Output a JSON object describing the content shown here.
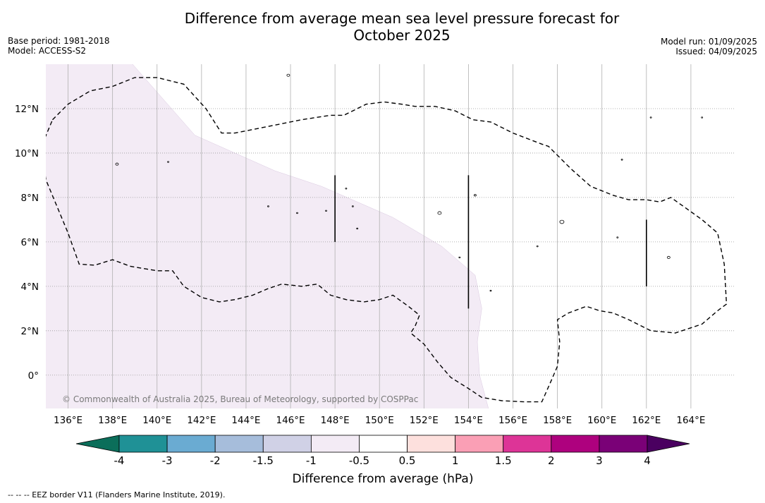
{
  "title": {
    "line1": "Difference from average mean sea level pressure forecast for",
    "line2": "October 2025"
  },
  "meta_left": {
    "base_period": "Base period: 1981-2018",
    "model": "Model: ACCESS-S2"
  },
  "meta_right": {
    "model_run": "Model run: 01/09/2025",
    "issued": "Issued: 04/09/2025"
  },
  "map": {
    "lon_range": [
      135,
      166
    ],
    "lat_range": [
      -1.5,
      14
    ],
    "lon_ticks": [
      136,
      138,
      140,
      142,
      144,
      146,
      148,
      150,
      152,
      154,
      156,
      158,
      160,
      162,
      164
    ],
    "lon_tick_labels": [
      "136°E",
      "138°E",
      "140°E",
      "142°E",
      "144°E",
      "146°E",
      "148°E",
      "150°E",
      "152°E",
      "154°E",
      "156°E",
      "158°E",
      "160°E",
      "162°E",
      "164°E"
    ],
    "lat_ticks": [
      0,
      2,
      4,
      6,
      8,
      10,
      12
    ],
    "lat_tick_labels": [
      "0°",
      "2°N",
      "4°N",
      "6°N",
      "8°N",
      "10°N",
      "12°N"
    ],
    "grid": true,
    "copyright": "© Commonwealth of Australia 2025, Bureau of Meteorology, supported by COSPPac",
    "shaded_class": "-1 to -0.5",
    "shade_color": "#f3ebf5",
    "shaded_boundary_points": [
      [
        138.9,
        14
      ],
      [
        141.7,
        10.8
      ],
      [
        145.3,
        9.2
      ],
      [
        147.4,
        8.5
      ],
      [
        150.6,
        7.1
      ],
      [
        152.8,
        5.8
      ],
      [
        154.3,
        4.5
      ],
      [
        154.6,
        3.0
      ],
      [
        154.4,
        1.5
      ],
      [
        154.5,
        0
      ],
      [
        154.9,
        -1.5
      ]
    ],
    "eez_border": [
      [
        135.3,
        11.5
      ],
      [
        136.0,
        12.2
      ],
      [
        137.0,
        12.8
      ],
      [
        138.0,
        13.0
      ],
      [
        139.0,
        13.4
      ],
      [
        140.0,
        13.4
      ],
      [
        141.2,
        13.1
      ],
      [
        142.2,
        12.0
      ],
      [
        142.9,
        10.9
      ],
      [
        143.5,
        10.9
      ],
      [
        145.0,
        11.2
      ],
      [
        146.5,
        11.5
      ],
      [
        147.8,
        11.7
      ],
      [
        148.4,
        11.7
      ],
      [
        149.4,
        12.2
      ],
      [
        150.2,
        12.3
      ],
      [
        151.0,
        12.2
      ],
      [
        151.6,
        12.1
      ],
      [
        152.5,
        12.1
      ],
      [
        153.4,
        11.9
      ],
      [
        154.2,
        11.5
      ],
      [
        155.0,
        11.4
      ],
      [
        156.0,
        10.9
      ],
      [
        157.3,
        10.4
      ],
      [
        157.6,
        10.3
      ],
      [
        158.6,
        9.3
      ],
      [
        159.5,
        8.5
      ],
      [
        160.5,
        8.1
      ],
      [
        161.2,
        7.9
      ],
      [
        162.0,
        7.9
      ],
      [
        162.6,
        7.8
      ],
      [
        163.1,
        8.0
      ],
      [
        163.8,
        7.5
      ],
      [
        164.5,
        7.0
      ],
      [
        165.2,
        6.4
      ],
      [
        165.5,
        5.0
      ],
      [
        165.6,
        3.2
      ],
      [
        165.2,
        2.9
      ],
      [
        164.5,
        2.3
      ],
      [
        163.3,
        1.9
      ],
      [
        162.2,
        2.0
      ],
      [
        161.2,
        2.5
      ],
      [
        160.5,
        2.8
      ],
      [
        159.9,
        2.9
      ],
      [
        159.3,
        3.1
      ],
      [
        158.5,
        2.8
      ],
      [
        158.0,
        2.5
      ],
      [
        158.1,
        1.5
      ],
      [
        158.0,
        0.4
      ],
      [
        157.7,
        -0.3
      ],
      [
        157.3,
        -1.2
      ],
      [
        156.5,
        -1.2
      ],
      [
        155.5,
        -1.15
      ],
      [
        154.6,
        -1.0
      ],
      [
        154.0,
        -0.6
      ],
      [
        153.2,
        -0.1
      ],
      [
        152.6,
        0.6
      ],
      [
        152.0,
        1.4
      ],
      [
        151.4,
        1.9
      ],
      [
        151.6,
        2.2
      ],
      [
        151.8,
        2.7
      ],
      [
        151.3,
        3.1
      ],
      [
        150.6,
        3.6
      ],
      [
        150.0,
        3.4
      ],
      [
        149.3,
        3.3
      ],
      [
        148.5,
        3.4
      ],
      [
        147.8,
        3.6
      ],
      [
        147.2,
        4.1
      ],
      [
        146.5,
        4.0
      ],
      [
        145.6,
        4.1
      ],
      [
        145.0,
        3.9
      ],
      [
        144.3,
        3.6
      ],
      [
        143.5,
        3.4
      ],
      [
        142.8,
        3.3
      ],
      [
        142.0,
        3.5
      ],
      [
        141.2,
        4.0
      ],
      [
        140.7,
        4.7
      ],
      [
        140.0,
        4.7
      ],
      [
        138.8,
        4.9
      ],
      [
        138.0,
        5.2
      ],
      [
        137.2,
        4.95
      ],
      [
        136.5,
        5.0
      ],
      [
        136.0,
        6.4
      ],
      [
        135.5,
        7.6
      ],
      [
        135.0,
        8.8
      ],
      [
        134.8,
        10.3
      ],
      [
        135.3,
        11.5
      ]
    ],
    "vertical_bars": [
      {
        "lon": 148.0,
        "lat_start": 6.0,
        "lat_end": 9.0
      },
      {
        "lon": 154.0,
        "lat_start": 3.0,
        "lat_end": 9.0
      },
      {
        "lon": 162.0,
        "lat_start": 4.0,
        "lat_end": 7.0
      }
    ]
  },
  "colorbar": {
    "title": "Difference from average (hPa)",
    "labels": [
      "-4",
      "-3",
      "-2",
      "-1.5",
      "-1",
      "-0.5",
      "0.5",
      "1",
      "1.5",
      "2",
      "3",
      "4"
    ],
    "under_color": "#0b6e5a",
    "over_color": "#4a0060",
    "colors": [
      "#1f9196",
      "#6aabd2",
      "#a6bddb",
      "#d0d1e6",
      "#f3ebf5",
      "#ffffff",
      "#fde0dd",
      "#fa9fb5",
      "#dd3497",
      "#ae017e",
      "#7a0177"
    ]
  },
  "footnote": "--  --  -- EEZ border V11 (Flanders Marine Institute, 2019)."
}
